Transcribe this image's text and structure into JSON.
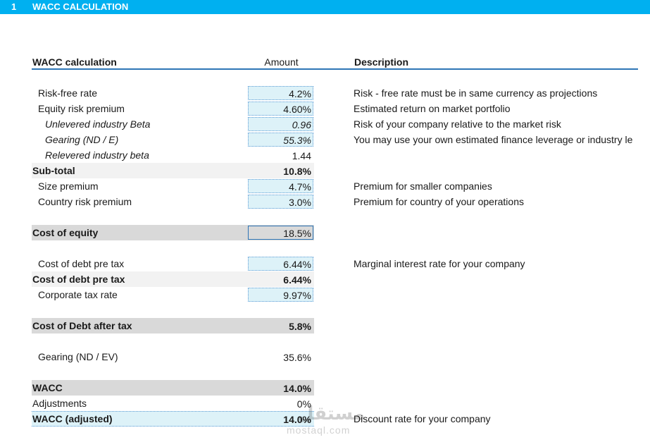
{
  "header": {
    "section_number": "1",
    "title": "WACC CALCULATION"
  },
  "columns": {
    "label": "WACC calculation",
    "amount": "Amount",
    "description": "Description"
  },
  "rows": [
    {
      "label": "Risk-free rate",
      "value": "4.2%",
      "description": "Risk - free rate must be in same currency as projections"
    },
    {
      "label": "Equity risk premium",
      "value": "4.60%",
      "description": "Estimated return on market portfolio"
    },
    {
      "label": "Unlevered industry Beta",
      "value": "0.96",
      "description": "Risk of your company relative to the market risk"
    },
    {
      "label": "Gearing (ND / E)",
      "value": "55.3%",
      "description": "You may use your own estimated finance leverage or industry le"
    },
    {
      "label": "Relevered industry beta",
      "value": "1.44"
    },
    {
      "label": "Sub-total",
      "value": "10.8%"
    },
    {
      "label": "Size premium",
      "value": "4.7%",
      "description": "Premium for smaller companies"
    },
    {
      "label": "Country risk premium",
      "value": "3.0%",
      "description": "Premium for country of your operations"
    },
    {
      "label": "Cost of equity",
      "value": "18.5%"
    },
    {
      "label": "Cost of debt pre tax",
      "value": "6.44%",
      "description": "Marginal interest rate for your company"
    },
    {
      "label": "Cost of debt pre tax",
      "value": "6.44%"
    },
    {
      "label": "Corporate tax rate",
      "value": "9.97%"
    },
    {
      "label": "Cost of Debt after tax",
      "value": "5.8%"
    },
    {
      "label": "Gearing (ND / EV)",
      "value": "35.6%"
    },
    {
      "label": "WACC",
      "value": "14.0%"
    },
    {
      "label": "Adjustments",
      "value": "0%"
    },
    {
      "label": "WACC (adjusted)",
      "value": "14.0%",
      "description": "Discount rate for your company"
    }
  ],
  "watermark": {
    "arabic": "مستقل",
    "latin": "mostaql.com"
  }
}
